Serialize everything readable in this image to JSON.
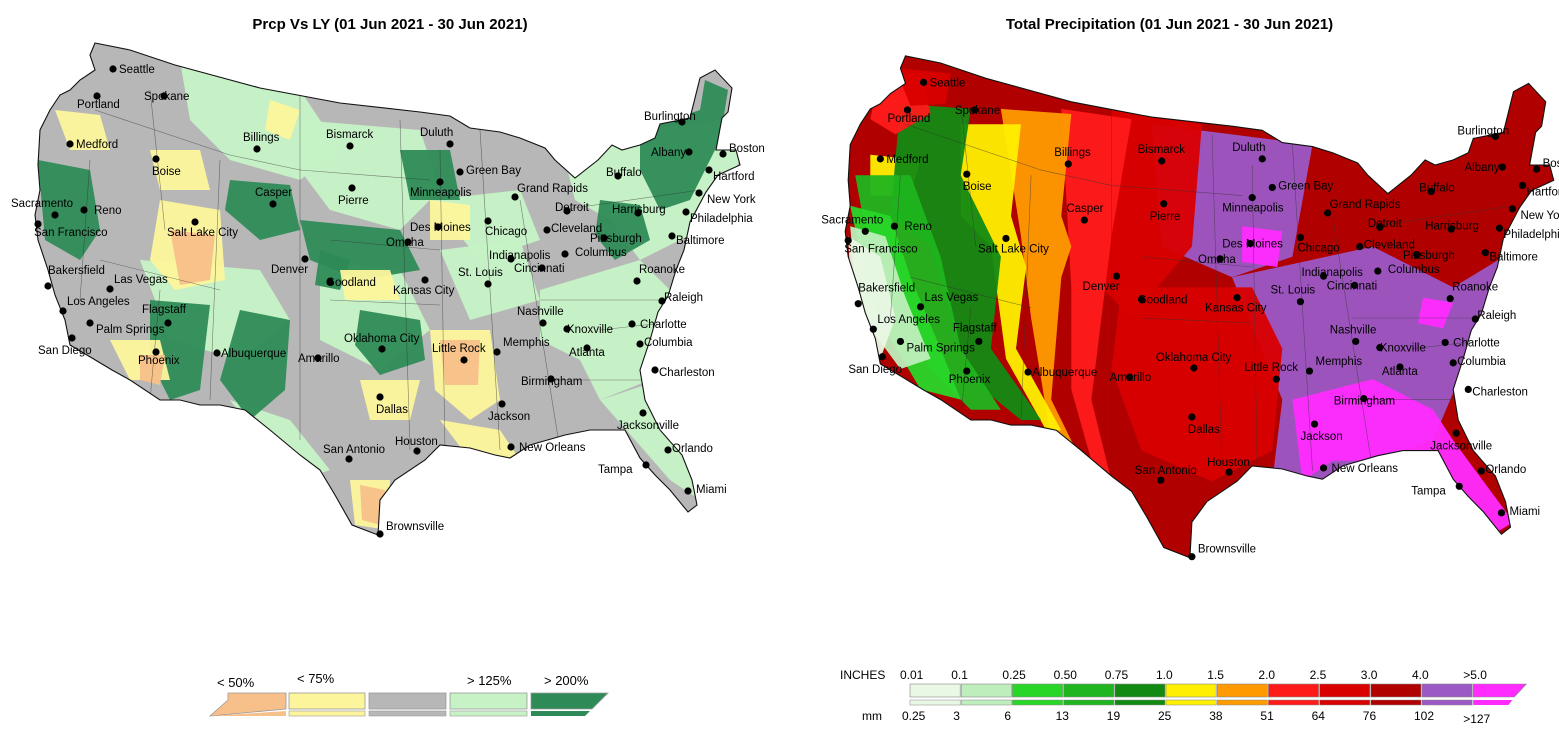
{
  "left_map": {
    "title": "Prcp Vs LY (01 Jun 2021 - 30 Jun 2021)",
    "legend": {
      "labels": [
        "< 50%",
        "< 75%",
        "> 125%",
        "> 200%"
      ],
      "bins": [
        {
          "color": "#f7c08a"
        },
        {
          "color": "#fdf59c"
        },
        {
          "color": "#b7b7b7"
        },
        {
          "color": "#c6f2c6"
        },
        {
          "color": "#2e8b57"
        }
      ]
    }
  },
  "right_map": {
    "title": "Total Precipitation (01 Jun 2021 - 30 Jun 2021)",
    "legend": {
      "inches_unit": "INCHES",
      "mm_unit": "mm",
      "inches_ticks": [
        "0.01",
        "0.1",
        "0.25",
        "0.50",
        "0.75",
        "1.0",
        "1.5",
        "2.0",
        "2.5",
        "3.0",
        "4.0",
        ">5.0"
      ],
      "mm_ticks": [
        "0.25",
        "3",
        "6",
        "13",
        "19",
        "25",
        "38",
        "51",
        "64",
        "76",
        "102",
        ">127"
      ],
      "bins": [
        {
          "color": "#e9f8e4"
        },
        {
          "color": "#bdeebb"
        },
        {
          "color": "#28d628"
        },
        {
          "color": "#1fb51f"
        },
        {
          "color": "#128a12"
        },
        {
          "color": "#ffef00"
        },
        {
          "color": "#ff9a00"
        },
        {
          "color": "#ff1a1a"
        },
        {
          "color": "#d90000"
        },
        {
          "color": "#b00000"
        },
        {
          "color": "#9b59c6"
        },
        {
          "color": "#ff2bff"
        }
      ]
    }
  },
  "cities": [
    "Seattle",
    "Spokane",
    "Portland",
    "Medford",
    "Boise",
    "Billings",
    "Bismarck",
    "Duluth",
    "Burlington",
    "Boston",
    "Albany",
    "Hartford",
    "New York",
    "Philadelphia",
    "Baltimore",
    "Green Bay",
    "Minneapolis",
    "Grand Rapids",
    "Buffalo",
    "Detroit",
    "Cleveland",
    "Harrisburg",
    "Pittsburgh",
    "Columbus",
    "Chicago",
    "Des Moines",
    "Omaha",
    "Pierre",
    "Casper",
    "Sacramento",
    "San Francisco",
    "Reno",
    "Salt Lake City",
    "Denver",
    "Goodland",
    "Kansas City",
    "St. Louis",
    "Indianapolis",
    "Cincinnati",
    "Roanoke",
    "Raleigh",
    "Charlotte",
    "Knoxville",
    "Nashville",
    "Memphis",
    "Little Rock",
    "Oklahoma City",
    "Amarillo",
    "Albuquerque",
    "Flagstaff",
    "Las Vegas",
    "Bakersfield",
    "Los Angeles",
    "Palm Springs",
    "San Diego",
    "Phoenix",
    "Dallas",
    "Houston",
    "San Antonio",
    "Brownsville",
    "New Orleans",
    "Jackson",
    "Birmingham",
    "Atlanta",
    "Columbia",
    "Charleston",
    "Jacksonville",
    "Orlando",
    "Tampa",
    "Miami"
  ]
}
